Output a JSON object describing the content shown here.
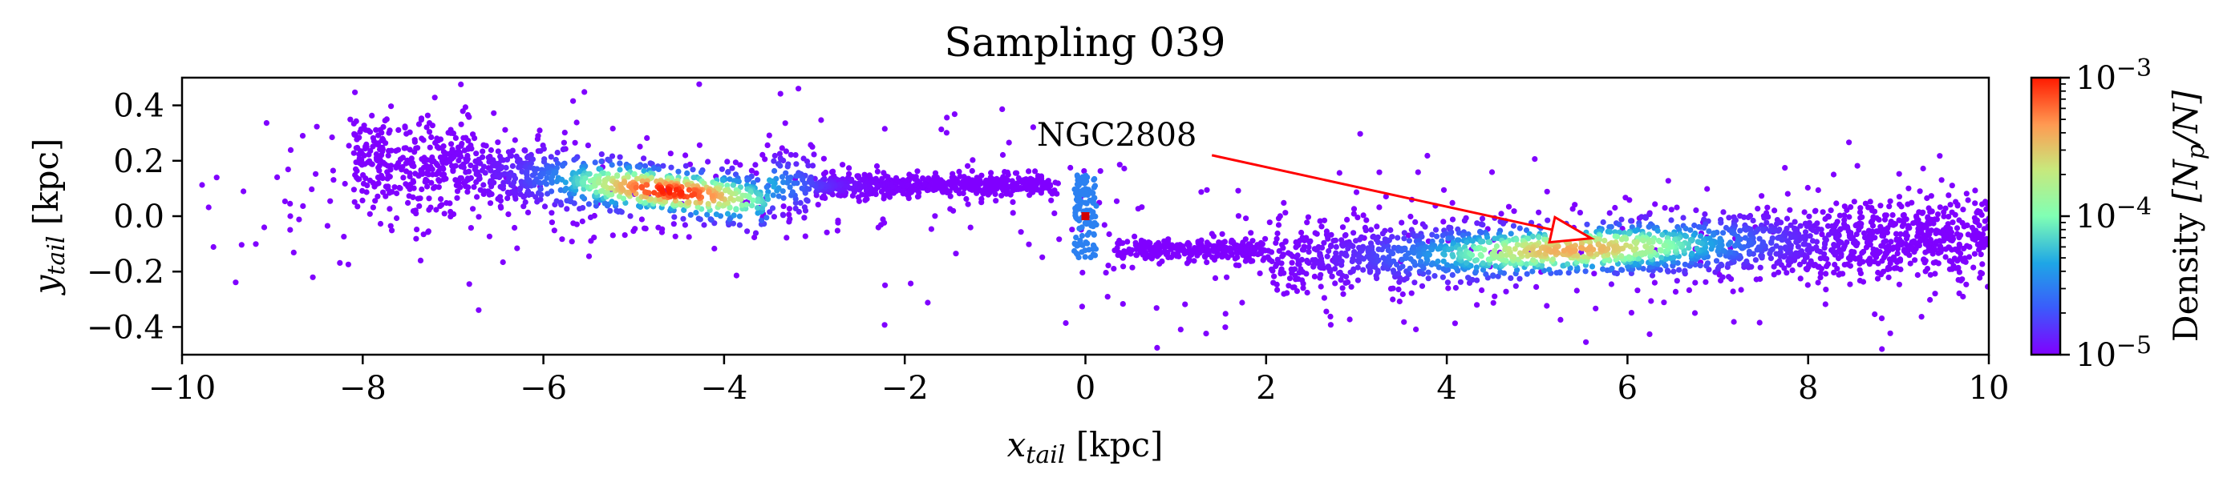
{
  "chart_data": {
    "type": "scatter",
    "title": "Sampling 039",
    "xlabel_main": "x",
    "xlabel_sub": "tail",
    "xlabel_unit": " [kpc]",
    "ylabel_main": "y",
    "ylabel_sub": "tail",
    "ylabel_unit": " [kpc]",
    "xlim": [
      -10,
      10
    ],
    "ylim": [
      -0.5,
      0.5
    ],
    "xticks": [
      -10,
      -8,
      -6,
      -4,
      -2,
      0,
      2,
      4,
      6,
      8,
      10
    ],
    "xtick_labels": [
      "−10",
      "−8",
      "−6",
      "−4",
      "−2",
      "0",
      "2",
      "4",
      "6",
      "8",
      "10"
    ],
    "yticks": [
      0.4,
      0.2,
      0.0,
      -0.2,
      -0.4
    ],
    "ytick_labels": [
      "0.4",
      "0.2",
      "0.0",
      "−0.2",
      "−0.4"
    ],
    "grid": false,
    "annotation": {
      "text": "NGC2808",
      "arrow_from": [
        1.4,
        0.22
      ],
      "arrow_to": [
        5.6,
        -0.08
      ],
      "color": "#ff0000"
    },
    "cluster_marker": {
      "x": 0.0,
      "y": 0.0,
      "color": "#d40000"
    },
    "density_structure": {
      "leading_tail": {
        "x_range": [
          -8.0,
          -0.3
        ],
        "peak_x": -4.6,
        "peak_y": 0.09
      },
      "trailing_tail": {
        "x_range": [
          0.3,
          10.0
        ],
        "peak_x": 5.4,
        "peak_y": -0.1
      }
    },
    "colorbar": {
      "label_main": "Density ",
      "label_math": "[N",
      "label_sub": "p",
      "label_end": "/N]",
      "scale": "log",
      "range": [
        1e-05,
        0.001
      ],
      "tick_labels": [
        {
          "base": "10",
          "exp": "−3",
          "value": 0.001
        },
        {
          "base": "10",
          "exp": "−4",
          "value": 0.0001
        },
        {
          "base": "10",
          "exp": "−5",
          "value": 1e-05
        }
      ],
      "colormap": "rainbow"
    }
  }
}
